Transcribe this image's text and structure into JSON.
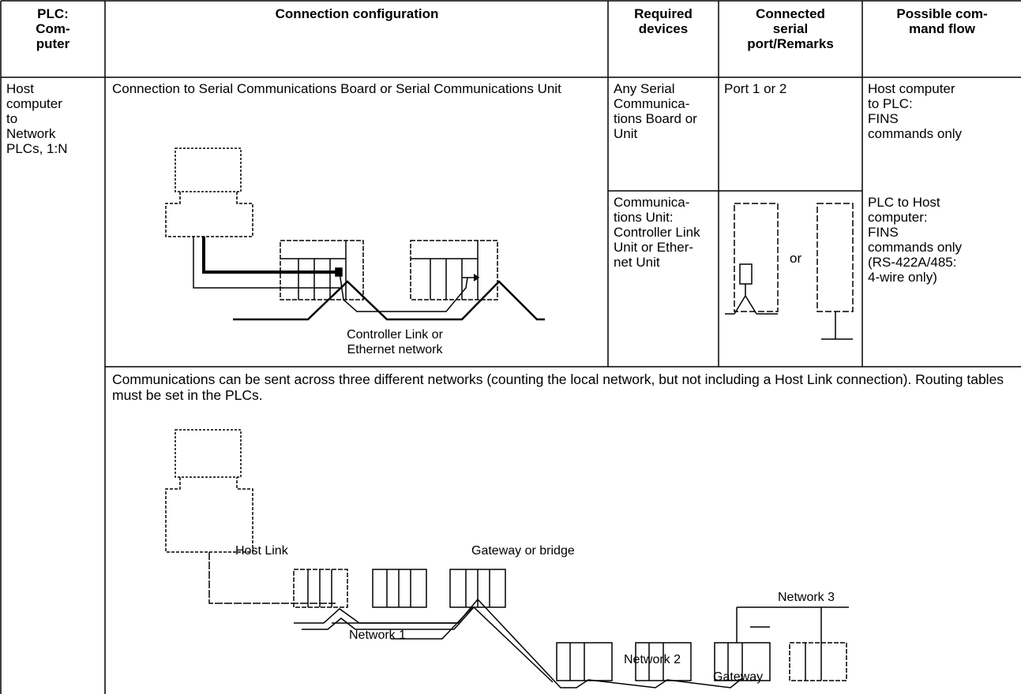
{
  "table": {
    "header": [
      "PLC:\nCom-\nputer",
      "Connection configuration",
      "Required\ndevices",
      "Connected\nserial\nport/Remarks",
      "Possible com-\nmand flow"
    ],
    "row_label": "Host\ncomputer\nto\nNetwork\nPLCs, 1:N",
    "config1": {
      "title": "Connection to Serial Communications Board or Serial Communications Unit",
      "network_label": "Controller Link or\nEthernet network"
    },
    "devices": [
      "Any Serial\nCommunica-\ntions Board or\nUnit",
      "Communica-\ntions Unit:\nController Link\nUnit or Ether-\nnet Unit"
    ],
    "ports": [
      "Port 1 or 2",
      "or"
    ],
    "flows": [
      "Host computer\nto PLC:\nFINS\ncommands only",
      "PLC to Host\ncomputer:\nFINS\ncommands only\n(RS-422A/485:\n4-wire only)"
    ],
    "config2": {
      "text": "Communications can be sent across three different networks (counting the local network, but not including a Host Link connection). Routing tables must be set in the PLCs.",
      "labels": [
        "Host Link",
        "Gateway or bridge",
        "Network 1",
        "Network 2",
        "Network 3",
        "Gateway"
      ]
    }
  }
}
